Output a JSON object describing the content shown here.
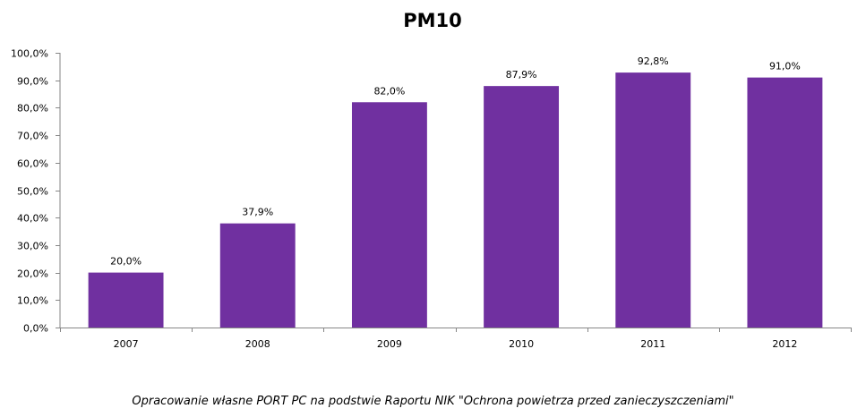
{
  "chart_data": {
    "type": "bar",
    "title": "PM10",
    "categories": [
      "2007",
      "2008",
      "2009",
      "2010",
      "2011",
      "2012"
    ],
    "values": [
      20.0,
      37.9,
      82.0,
      87.9,
      92.8,
      91.0
    ],
    "value_labels": [
      "20,0%",
      "37,9%",
      "82,0%",
      "87,9%",
      "92,8%",
      "91,0%"
    ],
    "yticks": [
      "0,0%",
      "10,0%",
      "20,0%",
      "30,0%",
      "40,0%",
      "50,0%",
      "60,0%",
      "70,0%",
      "80,0%",
      "90,0%",
      "100,0%"
    ],
    "ylim": [
      0,
      100
    ],
    "xlabel": "",
    "ylabel": "",
    "grid": false,
    "legend": "none",
    "bar_color": "#7030A0",
    "axis_color": "#868686"
  },
  "source_note": "Opracowanie własne PORT PC na podstwie Raportu NIK \"Ochrona powietrza przed zanieczyszczeniami\""
}
